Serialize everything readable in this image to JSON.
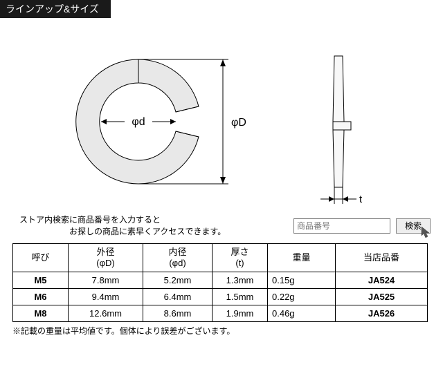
{
  "header": {
    "title": "ラインアップ&サイズ"
  },
  "diagram": {
    "inner_label": "φd",
    "outer_label": "φD",
    "thickness_label": "t",
    "stroke": "#000000",
    "fill": "#f8f8f8",
    "ring_fill": "#e8e8e8"
  },
  "search": {
    "line1": "ストア内検索に商品番号を入力すると",
    "line2": "お探しの商品に素早くアクセスできます。",
    "placeholder": "商品番号",
    "button": "検索"
  },
  "table": {
    "headers": {
      "name": "呼び",
      "outer_d": "外径\n(φD)",
      "inner_d": "内径\n(φd)",
      "thick": "厚さ\n(t)",
      "weight": "重量",
      "partno": "当店品番"
    },
    "rows": [
      {
        "name": "M5",
        "outer_d": "7.8mm",
        "inner_d": "5.2mm",
        "thick": "1.3mm",
        "weight": "0.15g",
        "partno": "JA524"
      },
      {
        "name": "M6",
        "outer_d": "9.4mm",
        "inner_d": "6.4mm",
        "thick": "1.5mm",
        "weight": "0.22g",
        "partno": "JA525"
      },
      {
        "name": "M8",
        "outer_d": "12.6mm",
        "inner_d": "8.6mm",
        "thick": "1.9mm",
        "weight": "0.46g",
        "partno": "JA526"
      }
    ]
  },
  "note": "※記載の重量は平均値です。個体により誤差がございます。"
}
